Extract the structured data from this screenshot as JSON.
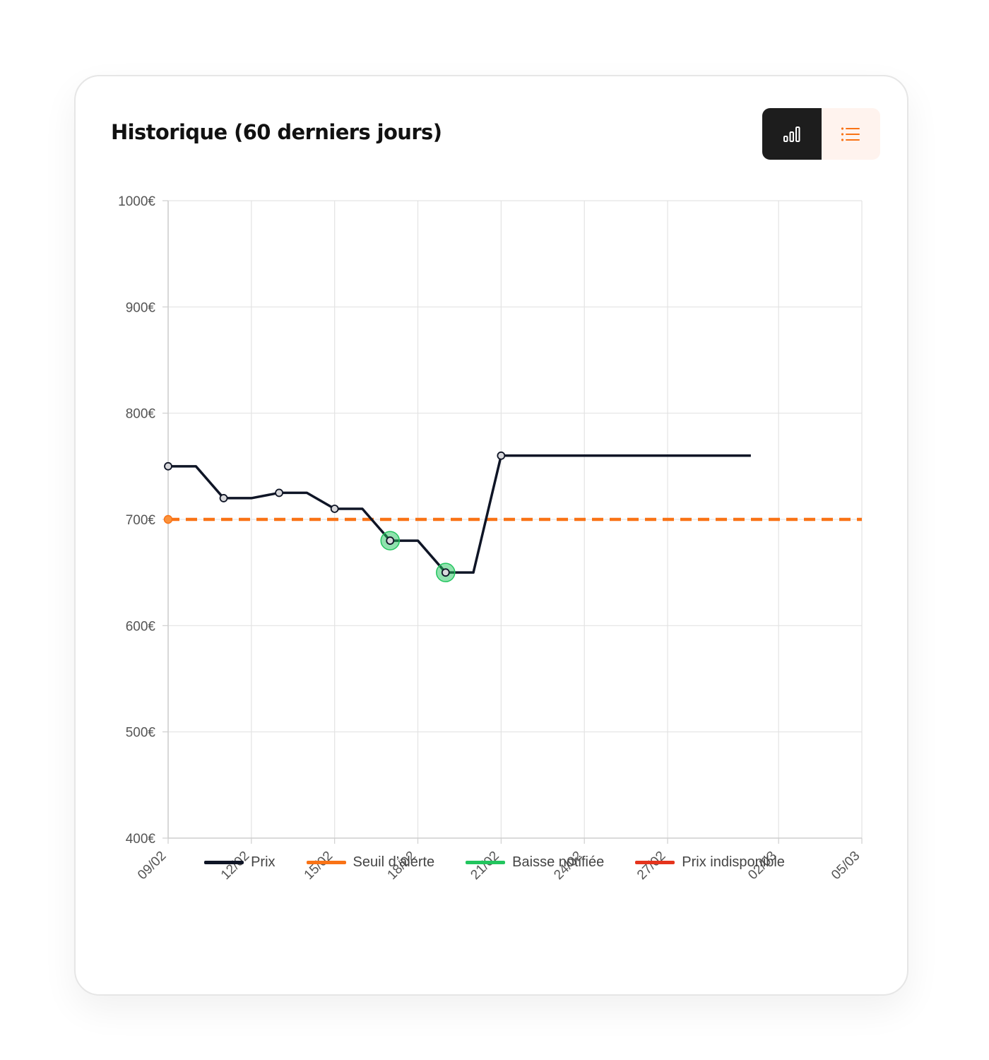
{
  "title": "Historique (60 derniers jours)",
  "toggle": {
    "chart_icon": "bar-chart-icon",
    "list_icon": "list-icon",
    "active": "chart"
  },
  "colors": {
    "price": "#0f1526",
    "threshold": "#f97316",
    "drop": "#22c55e",
    "unavailable": "#e5341d",
    "toggle_active_bg": "#1d1d1d",
    "toggle_inactive_bg": "#fff3ee"
  },
  "legend": [
    {
      "label": "Prix",
      "color": "#0f1526"
    },
    {
      "label": "Seuil d’alerte",
      "color": "#f97316"
    },
    {
      "label": "Baisse notifiée",
      "color": "#22c55e"
    },
    {
      "label": "Prix indisponible",
      "color": "#e5341d"
    }
  ],
  "chart_data": {
    "type": "line",
    "y_ticks": [
      "1000€",
      "900€",
      "800€",
      "700€",
      "600€",
      "500€",
      "400€"
    ],
    "ylim": [
      400,
      1000
    ],
    "x_ticks": [
      "09/02",
      "12/02",
      "15/02",
      "18/02",
      "21/02",
      "24/02",
      "27/02",
      "02/03",
      "05/03"
    ],
    "xlim": [
      "09/02",
      "05/03"
    ],
    "grid": true,
    "legend_position": "bottom",
    "series": [
      {
        "name": "Prix",
        "points": [
          {
            "x": "09/02",
            "y": 750,
            "marker": true
          },
          {
            "x": "10/02",
            "y": 750
          },
          {
            "x": "11/02",
            "y": 720,
            "marker": true
          },
          {
            "x": "12/02",
            "y": 720
          },
          {
            "x": "13/02",
            "y": 725,
            "marker": true
          },
          {
            "x": "14/02",
            "y": 725
          },
          {
            "x": "15/02",
            "y": 710,
            "marker": true
          },
          {
            "x": "16/02",
            "y": 710
          },
          {
            "x": "17/02",
            "y": 680,
            "marker": true,
            "drop": true
          },
          {
            "x": "18/02",
            "y": 680
          },
          {
            "x": "19/02",
            "y": 650,
            "marker": true,
            "drop": true
          },
          {
            "x": "20/02",
            "y": 650
          },
          {
            "x": "21/02",
            "y": 760,
            "marker": true
          },
          {
            "x": "01/03",
            "y": 760
          }
        ]
      },
      {
        "name": "Seuil d’alerte",
        "value": 700,
        "style": "dashed"
      }
    ]
  }
}
